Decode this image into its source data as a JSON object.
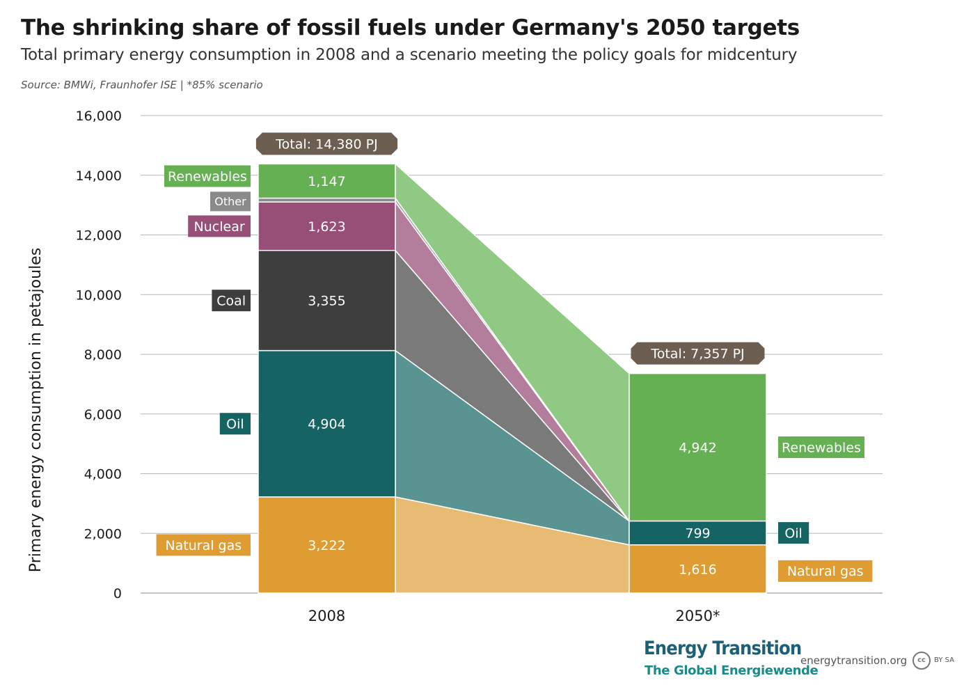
{
  "header": {
    "title": "The shrinking share of fossil fuels under Germany's 2050 targets",
    "subtitle": "Total primary energy consumption in 2008 and a scenario meeting the policy goals for midcentury",
    "source": "Source: BMWi, Fraunhofer ISE | *85% scenario"
  },
  "chart_data": {
    "type": "bar",
    "stacked": true,
    "ylabel": "Primary energy consumption in petajoules",
    "ylim": [
      0,
      16000
    ],
    "yticks": [
      "0",
      "2,000",
      "4,000",
      "6,000",
      "8,000",
      "10,000",
      "12,000",
      "14,000",
      "16,000"
    ],
    "grid": true,
    "categories": [
      "2008",
      "2050*"
    ],
    "totals": [
      "Total: 14,380 PJ",
      "Total: 7,357 PJ"
    ],
    "total_values": [
      14380,
      7357
    ],
    "series": [
      {
        "name": "Natural gas",
        "color": "#df9c33",
        "flow_color": "#e8bb72",
        "values": [
          3222,
          1616
        ],
        "labels": [
          "3,222",
          "1,616"
        ]
      },
      {
        "name": "Oil",
        "color": "#156363",
        "flow_color": "#5a9492",
        "values": [
          4904,
          799
        ],
        "labels": [
          "4,904",
          "799"
        ]
      },
      {
        "name": "Coal",
        "color": "#3e3e3e",
        "flow_color": "#7a7a7a",
        "values": [
          3355,
          0
        ],
        "labels": [
          "3,355",
          ""
        ]
      },
      {
        "name": "Nuclear",
        "color": "#974f78",
        "flow_color": "#b27e9c",
        "values": [
          1623,
          0
        ],
        "labels": [
          "1,623",
          ""
        ]
      },
      {
        "name": "Other",
        "color": "#8a8a8a",
        "flow_color": "#a8a8a8",
        "values": [
          129,
          0
        ],
        "labels": [
          "",
          ""
        ]
      },
      {
        "name": "Renewables",
        "color": "#64b052",
        "flow_color": "#90c984",
        "values": [
          1147,
          4942
        ],
        "labels": [
          "1,147",
          "4,942"
        ]
      }
    ],
    "total_badge_color": "#6d5e52"
  },
  "footer": {
    "logo_line1": "Energy Transition",
    "logo_line2": "The Global Energiewende",
    "site": "energytransition.org",
    "cc": "cc",
    "license": "BY SA"
  }
}
